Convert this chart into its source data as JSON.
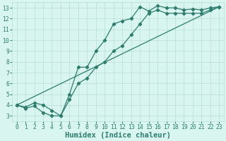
{
  "line1_x": [
    0,
    1,
    2,
    3,
    4,
    5,
    6,
    7,
    8,
    9,
    10,
    11,
    12,
    13,
    14,
    15,
    16,
    17,
    18,
    19,
    20,
    21,
    22,
    23
  ],
  "line1_y": [
    4.0,
    3.7,
    3.9,
    3.3,
    3.0,
    3.0,
    5.0,
    7.5,
    7.5,
    9.0,
    10.0,
    11.5,
    11.8,
    12.0,
    13.1,
    12.7,
    13.2,
    13.0,
    13.0,
    12.8,
    12.9,
    12.8,
    13.0,
    13.1
  ],
  "line2_x": [
    0,
    1,
    2,
    3,
    4,
    5,
    6,
    7,
    8,
    9,
    10,
    11,
    12,
    13,
    14,
    15,
    16,
    17,
    18,
    19,
    20,
    21,
    22,
    23
  ],
  "line2_y": [
    4.0,
    3.8,
    4.2,
    4.0,
    3.5,
    3.0,
    4.5,
    6.0,
    6.5,
    7.5,
    8.0,
    9.0,
    9.5,
    10.5,
    11.5,
    12.5,
    12.8,
    12.5,
    12.5,
    12.5,
    12.5,
    12.5,
    12.8,
    13.1
  ],
  "line3_x": [
    0,
    23
  ],
  "line3_y": [
    4.0,
    13.1
  ],
  "color": "#2e7d6e",
  "bg_color": "#d8f5f0",
  "grid_color": "#b8ddd6",
  "xlabel": "Humidex (Indice chaleur)",
  "xlim": [
    -0.5,
    23.5
  ],
  "ylim": [
    2.5,
    13.5
  ],
  "xticks": [
    0,
    1,
    2,
    3,
    4,
    5,
    6,
    7,
    8,
    9,
    10,
    11,
    12,
    13,
    14,
    15,
    16,
    17,
    18,
    19,
    20,
    21,
    22,
    23
  ],
  "yticks": [
    3,
    4,
    5,
    6,
    7,
    8,
    9,
    10,
    11,
    12,
    13
  ],
  "marker": "D",
  "markersize": 2.2,
  "linewidth": 0.9,
  "tick_fontsize": 5.8,
  "xlabel_fontsize": 7.5
}
